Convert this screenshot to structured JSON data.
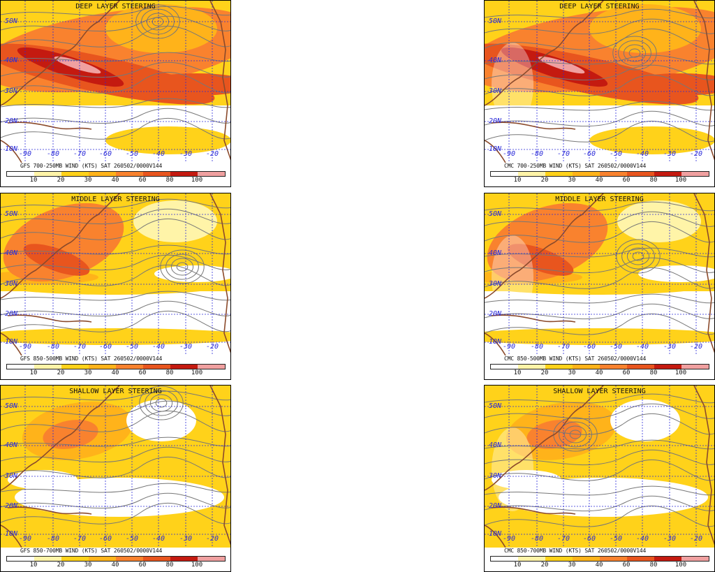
{
  "colorbar": {
    "ticks": [
      "10",
      "20",
      "30",
      "40",
      "60",
      "80",
      "100"
    ],
    "colors": [
      "#ffffff",
      "#fff4a8",
      "#ffd21a",
      "#ffb31a",
      "#f9822e",
      "#e8551e",
      "#c41a10",
      "#f0a0a0"
    ]
  },
  "lat_labels": [
    "50N",
    "40N",
    "30N",
    "20N",
    "10N"
  ],
  "lon_labels": [
    "-90",
    "-80",
    "-70",
    "-60",
    "-50",
    "-40",
    "-30",
    "-20"
  ],
  "panels": [
    {
      "id": "gfs-deep",
      "title": "DEEP LAYER STEERING",
      "caption": "GFS 700-250MB WIND (KTS) SAT 260502/0000V144"
    },
    {
      "id": "cmc-deep",
      "title": "DEEP LAYER STEERING",
      "caption": "CMC 700-250MB WIND (KTS) SAT 260502/0000V144"
    },
    {
      "id": "gfs-middle",
      "title": "MIDDLE LAYER STEERING",
      "caption": "GFS 850-500MB WIND (KTS) SAT 260502/0000V144"
    },
    {
      "id": "cmc-middle",
      "title": "MIDDLE LAYER STEERING",
      "caption": "CMC 850-500MB WIND (KTS) SAT 260502/0000V144"
    },
    {
      "id": "gfs-shallow",
      "title": "SHALLOW LAYER STEERING",
      "caption": "GFS 850-700MB WIND (KTS) SAT 260502/0000V144"
    },
    {
      "id": "cmc-shallow",
      "title": "SHALLOW LAYER STEERING",
      "caption": "CMC 850-700MB WIND (KTS) SAT 260502/0000V144"
    }
  ]
}
